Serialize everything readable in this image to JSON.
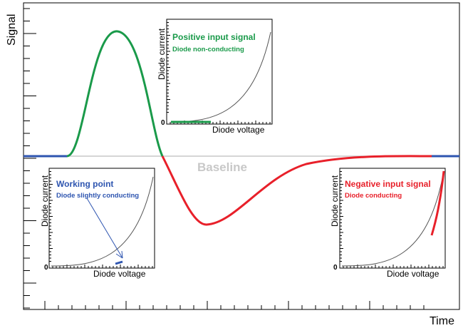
{
  "main_axes": {
    "y_label": "Signal",
    "x_label": "Time"
  },
  "baseline_label": "Baseline",
  "colors": {
    "positive": "#1a9a4a",
    "negative": "#e8202a",
    "neutral": "#2e55b0",
    "baseline_gray": "#c8c8c8",
    "curve_gray": "#555555"
  },
  "insets": [
    {
      "id": "positive",
      "title": "Positive input signal",
      "subtitle": "Diode non-conducting",
      "y_label": "Diode current",
      "x_label": "Diode voltage",
      "zero_label": "0",
      "color": "#1a9a4a"
    },
    {
      "id": "working",
      "title": "Working point",
      "subtitle": "Diode slightly conducting",
      "y_label": "Diode current",
      "x_label": "Diode voltage",
      "zero_label": "0",
      "color": "#2e55b0"
    },
    {
      "id": "negative",
      "title": "Negative input signal",
      "subtitle": "Diode conducting",
      "y_label": "Diode current",
      "x_label": "Diode voltage",
      "zero_label": "0",
      "color": "#e8202a"
    }
  ]
}
